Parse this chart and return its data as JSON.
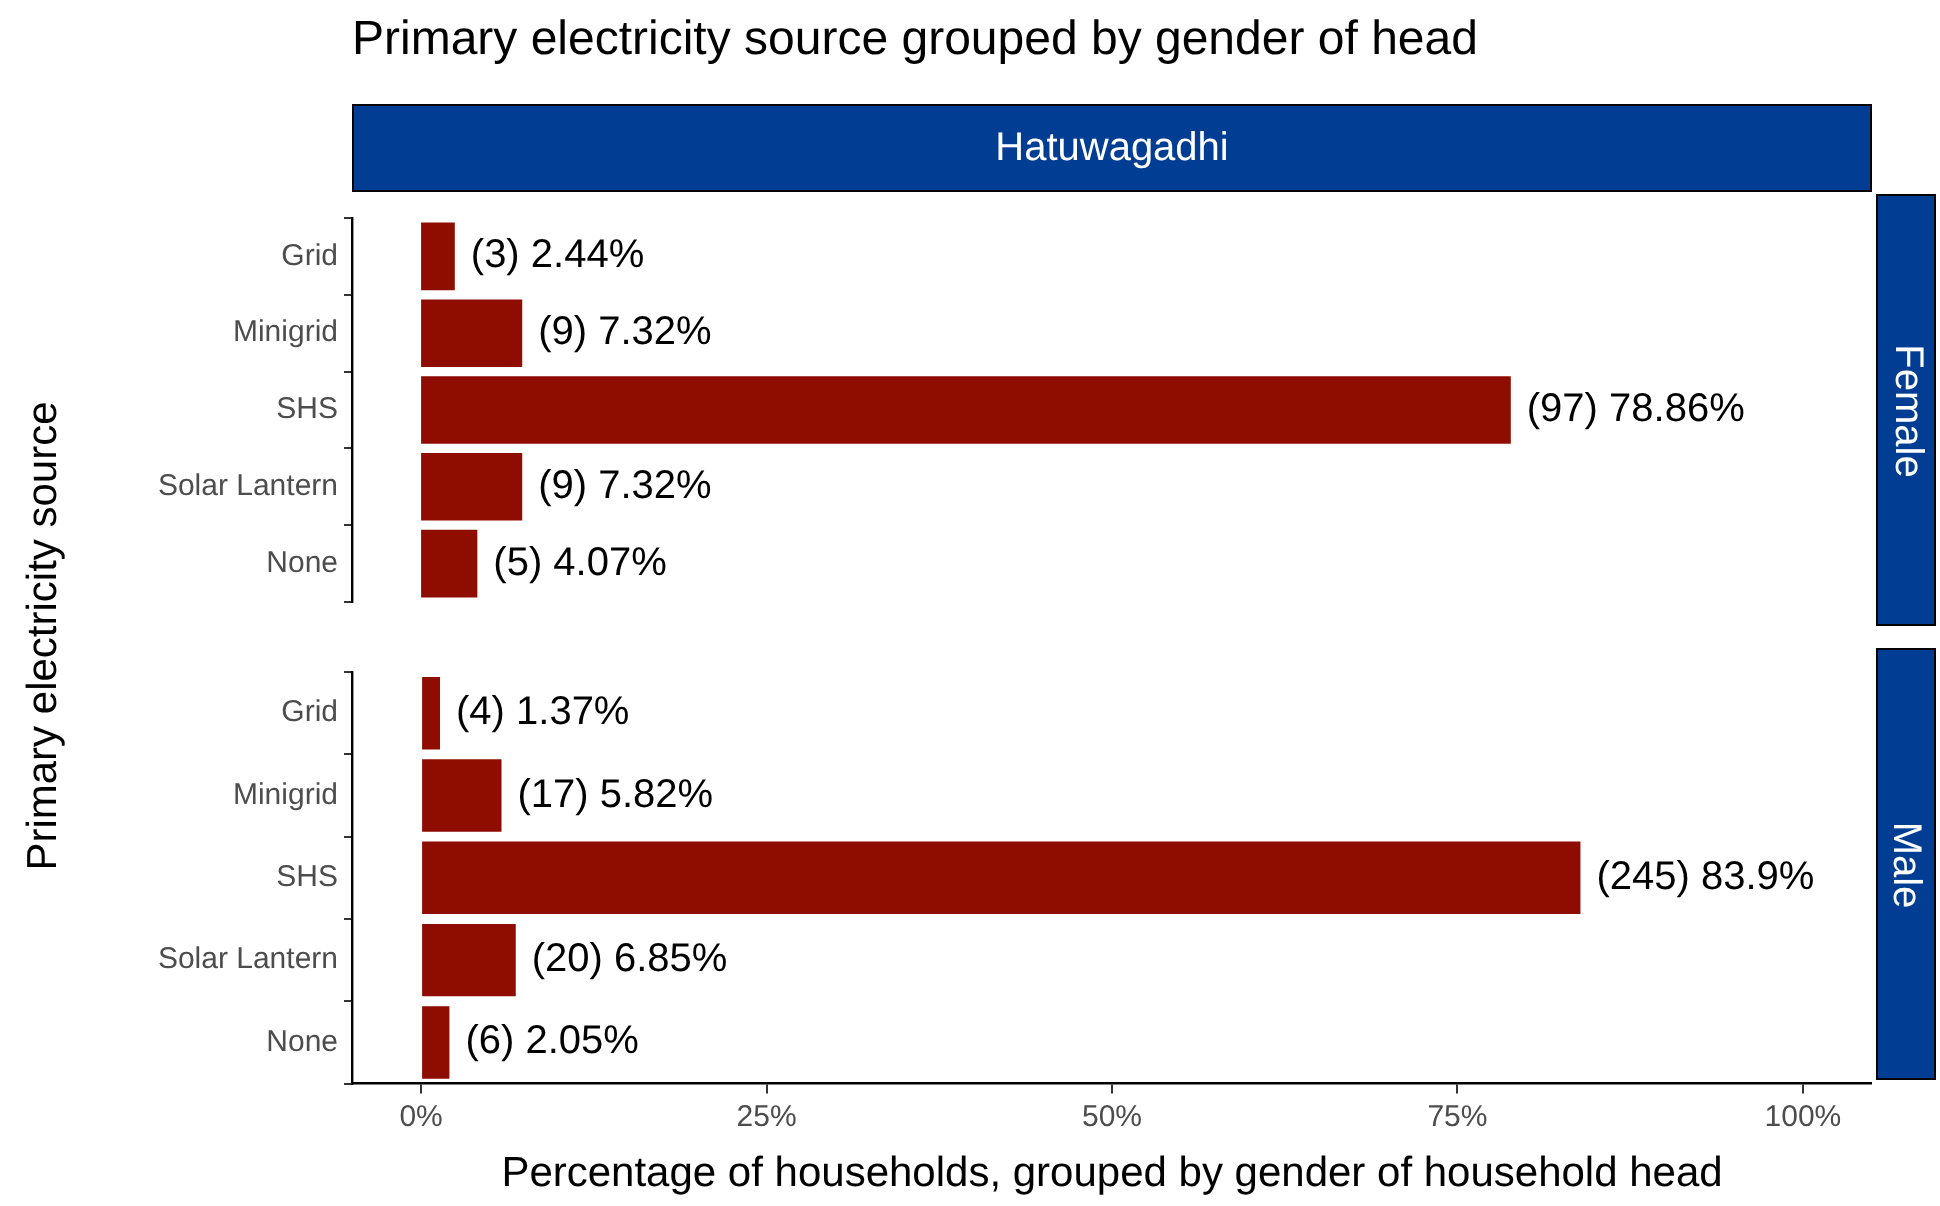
{
  "chart_data": [
    {
      "type": "bar",
      "orientation": "horizontal",
      "title": "Primary electricity source grouped by gender of head",
      "ylabel": "Primary electricity source",
      "annotations": [
        "Hatuwagadhi",
        "Female"
      ],
      "categories": [
        "Grid",
        "Minigrid",
        "SHS",
        "Solar Lantern",
        "None"
      ],
      "values": [
        2.44,
        7.32,
        78.86,
        7.32,
        4.07
      ],
      "value_labels": [
        "(3) 2.44%",
        "(9) 7.32%",
        "(97) 78.86%",
        "(9) 7.32%",
        "(5) 4.07%"
      ],
      "color": "#8f0d00",
      "tick_labels": "y"
    },
    {
      "type": "bar",
      "orientation": "horizontal",
      "xlabel": "Percentage of households, grouped by gender of household head",
      "annotations": [
        "Male"
      ],
      "categories": [
        "Grid",
        "Minigrid",
        "SHS",
        "Solar Lantern",
        "None"
      ],
      "values": [
        1.37,
        5.82,
        83.9,
        6.85,
        2.05
      ],
      "value_labels": [
        "(4) 1.37%",
        "(17) 5.82%",
        "(245) 83.9%",
        "(20) 6.85%",
        "(6) 2.05%"
      ],
      "color": "#8f0d00",
      "xlim": [
        -5,
        105
      ],
      "xticks": [
        {
          "value": 0,
          "label": "0%"
        },
        {
          "value": 25,
          "label": "25%"
        },
        {
          "value": 50,
          "label": "50%"
        },
        {
          "value": 75,
          "label": "75%"
        },
        {
          "value": 100,
          "label": "100%"
        }
      ]
    }
  ]
}
